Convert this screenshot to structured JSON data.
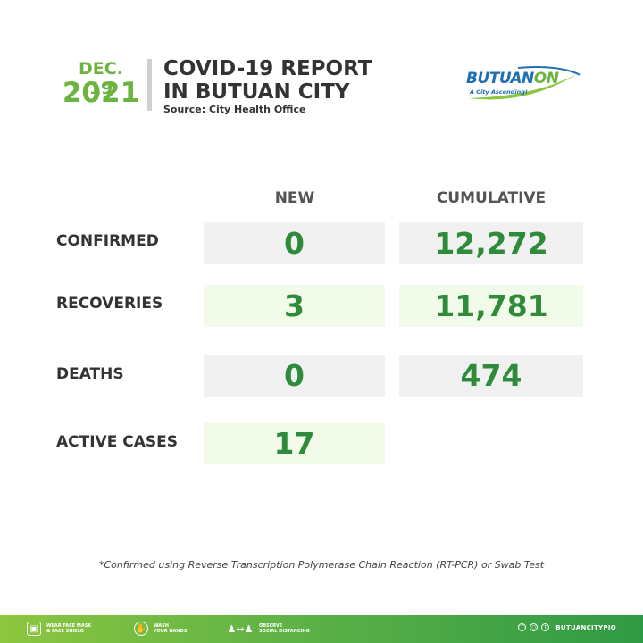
{
  "header": {
    "month_day": "DEC. 19",
    "year": "2021",
    "title_line1": "COVID-19 REPORT",
    "title_line2": "IN BUTUAN CITY",
    "source": "Source: City Health Office"
  },
  "logo": {
    "brand_main": "BUTUAN",
    "brand_on": "ON",
    "tagline": "A City Ascending!"
  },
  "table": {
    "col_new": "NEW",
    "col_cumulative": "CUMULATIVE",
    "rows": [
      {
        "label": "CONFIRMED",
        "new": "0",
        "cumulative": "12,272"
      },
      {
        "label": "RECOVERIES",
        "new": "3",
        "cumulative": "11,781"
      },
      {
        "label": "DEATHS",
        "new": "0",
        "cumulative": "474"
      },
      {
        "label": "ACTIVE CASES",
        "new": "17"
      }
    ]
  },
  "footnote": "*Confirmed using Reverse Transcription Polymerase Chain Reaction (RT-PCR) or Swab Test",
  "footer": {
    "tips": [
      {
        "line1": "WEAR FACE MASK",
        "line2": "& FACE SHIELD",
        "icon": "face-mask-icon"
      },
      {
        "line1": "WASH",
        "line2": "YOUR HANDS",
        "icon": "hand-wash-icon"
      },
      {
        "line1": "OBSERVE",
        "line2": "SOCIAL DISTANCING",
        "icon": "social-distancing-icon"
      }
    ],
    "handle": "BUTUANCITYPIO",
    "social_icons": [
      "facebook-icon",
      "instagram-icon",
      "twitter-icon"
    ]
  },
  "colors": {
    "accent_green": "#6cb33f",
    "value_green": "#2e8b3a",
    "logo_blue": "#1f6fb2"
  }
}
